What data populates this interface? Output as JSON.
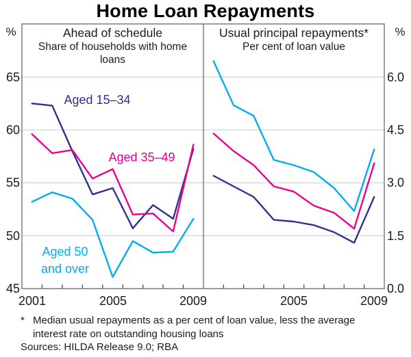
{
  "title": "Home Loan Repayments",
  "axis": {
    "left_years": [
      "2001",
      "2005",
      "2009"
    ],
    "right_years": [
      "2005",
      "2009"
    ]
  },
  "colors": {
    "grid": "#c9c9c9",
    "frame": "#737373",
    "tick": "#595959",
    "navy": "#2e3192",
    "pink": "#ec008c",
    "cyan": "#00aeef"
  },
  "footnote": {
    "marker": "*",
    "line1": "Median usual repayments as a per cent of loan value, less the average",
    "line2": "interest rate on outstanding housing loans",
    "sources": "Sources: HILDA Release 9.0; RBA"
  },
  "chart_data": {
    "type": "line",
    "x": [
      2001,
      2002,
      2003,
      2004,
      2005,
      2006,
      2007,
      2008,
      2009
    ],
    "legend_position": "inline-labels-left-panel",
    "grid": true,
    "panels": [
      {
        "title": "Ahead of schedule",
        "subtitle": "Share of households with home loans",
        "unit": "%",
        "ylim": [
          45,
          65
        ],
        "yticks": [
          "65",
          "60",
          "55",
          "50",
          "45"
        ],
        "xticks": [
          "2001",
          "2005",
          "2009"
        ],
        "series": [
          {
            "name": "Aged 15–34",
            "label": "Aged 15–34",
            "color": "#2e3192",
            "values": [
              62.5,
              62.3,
              58.0,
              53.9,
              54.5,
              50.7,
              52.9,
              51.6,
              58.2
            ]
          },
          {
            "name": "Aged 35–49",
            "label": "Aged 35–49",
            "color": "#ec008c",
            "values": [
              59.6,
              57.8,
              58.1,
              55.4,
              56.3,
              52.0,
              52.1,
              50.4,
              58.6
            ]
          },
          {
            "name": "Aged 50 and over",
            "label": "Aged 50 and over",
            "color": "#00aeef",
            "values": [
              53.2,
              54.1,
              53.5,
              51.5,
              46.1,
              49.5,
              48.4,
              48.5,
              51.6
            ]
          }
        ]
      },
      {
        "title": "Usual principal repayments*",
        "subtitle": "Per cent of loan value",
        "unit": "%",
        "ylim": [
          0,
          6
        ],
        "yticks": [
          "6.0",
          "4.5",
          "3.0",
          "1.5",
          "0.0"
        ],
        "xticks": [
          "2005",
          "2009"
        ],
        "series": [
          {
            "name": "Aged 15–34",
            "color": "#2e3192",
            "values": [
              3.2,
              2.9,
              2.6,
              1.95,
              1.9,
              1.8,
              1.6,
              1.3,
              2.6
            ]
          },
          {
            "name": "Aged 35–49",
            "color": "#ec008c",
            "values": [
              4.4,
              3.9,
              3.5,
              2.9,
              2.75,
              2.35,
              2.15,
              1.7,
              3.55
            ]
          },
          {
            "name": "Aged 50 and over",
            "color": "#00aeef",
            "values": [
              6.45,
              5.2,
              4.9,
              3.65,
              3.5,
              3.3,
              2.85,
              2.2,
              3.95
            ]
          }
        ]
      }
    ]
  }
}
